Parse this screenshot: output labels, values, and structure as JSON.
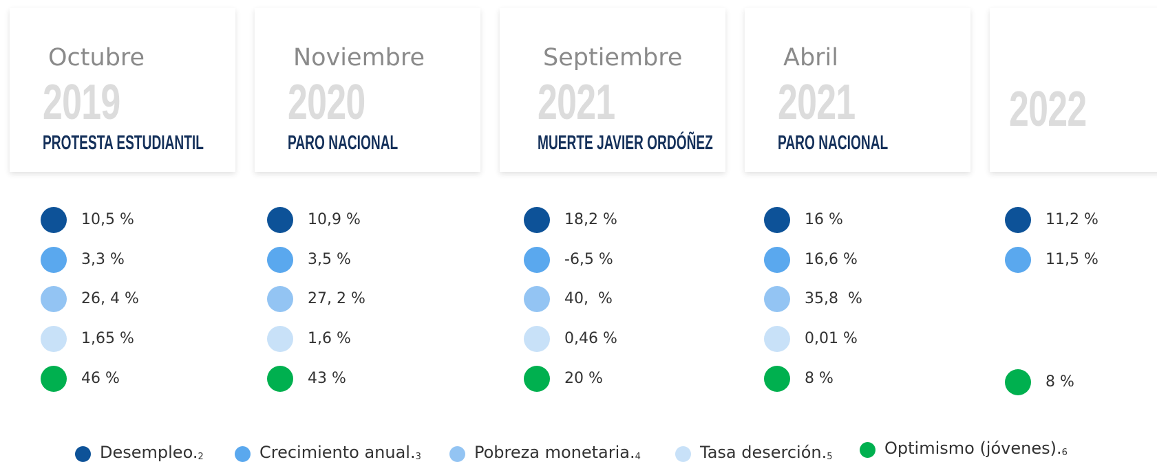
{
  "columns": [
    {
      "month": "Octubre",
      "year": "2019",
      "event": "PROTESTA ESTUDIANTIL",
      "stats": [
        "10,5 %",
        "3,3 %",
        "26, 4 %",
        "1,65 %",
        "46 %"
      ]
    },
    {
      "month": "Noviembre",
      "year": "2020",
      "event": "PARO NACIONAL",
      "stats": [
        "10,9 %",
        "3,5 %",
        "27, 2 %",
        "1,6 %",
        "43 %"
      ]
    },
    {
      "month": "Septiembre",
      "year": "2021",
      "event": "MUERTE JAVIER ORDÓÑEZ",
      "stats": [
        "18,2 %",
        "-6,5 %",
        "40,  %",
        "0,46 %",
        "20 %"
      ]
    },
    {
      "month": "Abril",
      "year": "2021",
      "event": "PARO NACIONAL",
      "stats": [
        "16 %",
        "16,6 %",
        "35,8  %",
        "0,01 %",
        "8 %"
      ]
    },
    {
      "year": "2022",
      "stats": [
        "11,2 %",
        "11,5 %",
        null,
        null,
        "8 %"
      ]
    }
  ],
  "legend": [
    {
      "label": "Desempleo.",
      "note": "2"
    },
    {
      "label": "Crecimiento anual.",
      "note": "3"
    },
    {
      "label": "Pobreza monetaria.",
      "note": "4"
    },
    {
      "label": "Tasa deserción.",
      "note": "5"
    },
    {
      "label": "Optimismo (jóvenes).",
      "note": "6"
    }
  ]
}
